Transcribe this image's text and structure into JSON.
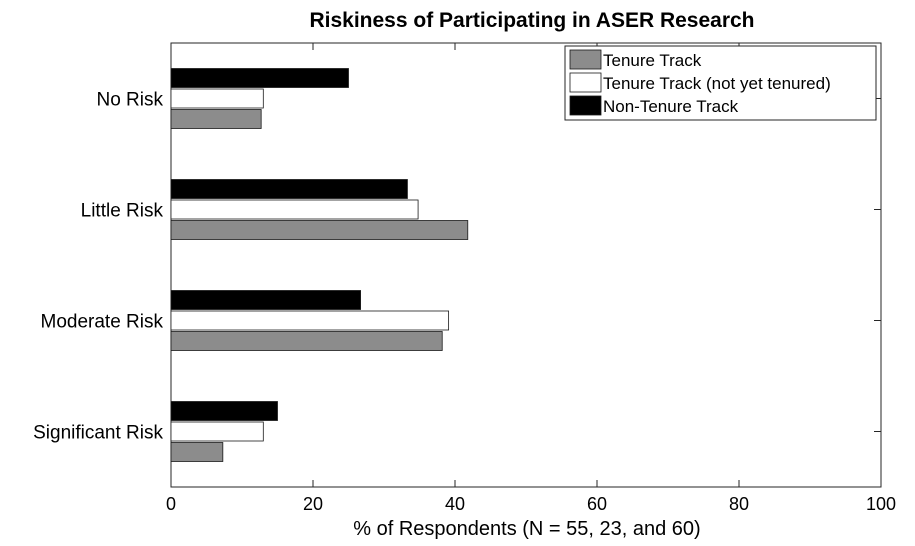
{
  "chart_data": {
    "type": "bar",
    "orientation": "horizontal",
    "title": "Riskiness of Participating in ASER Research",
    "xlabel": "% of Respondents (N = 55, 23, and 60)",
    "ylabel": "",
    "xlim": [
      0,
      100
    ],
    "xticks": [
      "0",
      "20",
      "40",
      "60",
      "80",
      "100"
    ],
    "categories": [
      "No Risk",
      "Little Risk",
      "Moderate Risk",
      "Significant Risk"
    ],
    "series": [
      {
        "name": "Tenure Track",
        "color": "#8c8c8c",
        "values": [
          12.7,
          41.8,
          38.2,
          7.3
        ]
      },
      {
        "name": "Tenure Track (not yet tenured)",
        "color": "#ffffff",
        "values": [
          13.0,
          34.8,
          39.1,
          13.0
        ]
      },
      {
        "name": "Non-Tenure Track",
        "color": "#000000",
        "values": [
          25.0,
          33.3,
          26.7,
          15.0
        ]
      }
    ],
    "legend_position": "top-right",
    "grid": false
  }
}
